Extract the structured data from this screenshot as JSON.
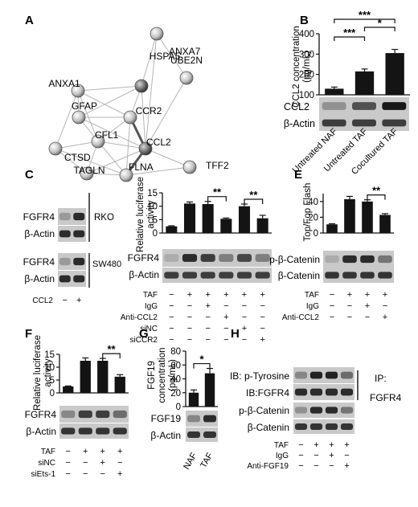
{
  "panels": {
    "A": {
      "label": "A",
      "nodes": [
        "ANXA1",
        "ANXA7",
        "UBE2N",
        "HSPA5",
        "GFAP",
        "CCR2",
        "CTSD",
        "CFL1",
        "CCL2",
        "TAGLN",
        "FLNA",
        "TFF2"
      ]
    },
    "B": {
      "label": "B",
      "bands": [
        "CCL2",
        "β-Actin"
      ],
      "xticks": [
        "Untreated NAF",
        "Untreated TAF",
        "Cocultured TAF"
      ],
      "sig": [
        "***",
        "***",
        "*"
      ]
    },
    "C": {
      "label": "C",
      "bands_rko": [
        "FGFR4",
        "β-Actin"
      ],
      "bands_sw": [
        "FGFR4",
        "β-Actin"
      ],
      "cell_lines": [
        "RKO",
        "SW480"
      ],
      "row_label": "CCL2",
      "signs": [
        "−",
        "+"
      ]
    },
    "D": {
      "label": "D",
      "bands": [
        "FGFR4",
        "β-Actin"
      ],
      "sig": [
        "**",
        "**"
      ],
      "rows": [
        {
          "label": "TAF",
          "signs": [
            "−",
            "+",
            "+",
            "+",
            "+",
            "+"
          ]
        },
        {
          "label": "IgG",
          "signs": [
            "−",
            "−",
            "+",
            "−",
            "−",
            "−"
          ]
        },
        {
          "label": "Anti-CCL2",
          "signs": [
            "−",
            "−",
            "−",
            "+",
            "−",
            "−"
          ]
        },
        {
          "label": "siNC",
          "signs": [
            "−",
            "−",
            "−",
            "−",
            "+",
            "−"
          ]
        },
        {
          "label": "siCCR2",
          "signs": [
            "−",
            "−",
            "−",
            "−",
            "−",
            "+"
          ]
        }
      ]
    },
    "E": {
      "label": "E",
      "bands": [
        "p-β-Catenin",
        "β-Catenin"
      ],
      "sig": [
        "**"
      ],
      "rows": [
        {
          "label": "TAF",
          "signs": [
            "−",
            "+",
            "+",
            "+"
          ]
        },
        {
          "label": "IgG",
          "signs": [
            "−",
            "−",
            "+",
            "−"
          ]
        },
        {
          "label": "Anti-CCL2",
          "signs": [
            "−",
            "−",
            "−",
            "+"
          ]
        }
      ]
    },
    "F": {
      "label": "F",
      "bands": [
        "FGFR4",
        "β-Actin"
      ],
      "sig": [
        "**"
      ],
      "rows": [
        {
          "label": "TAF",
          "signs": [
            "−",
            "+",
            "+",
            "+"
          ]
        },
        {
          "label": "siNC",
          "signs": [
            "−",
            "−",
            "+",
            "−"
          ]
        },
        {
          "label": "siEts-1",
          "signs": [
            "−",
            "−",
            "−",
            "+"
          ]
        }
      ]
    },
    "G": {
      "label": "G",
      "bands": [
        "FGF19",
        "β-Actin"
      ],
      "xticks": [
        "NAF",
        "TAF"
      ],
      "sig": [
        "*"
      ]
    },
    "H": {
      "label": "H",
      "bands": [
        "IB: p-Tyrosine",
        "IB:FGFR4",
        "p-β-Catenin",
        "β-Catenin"
      ],
      "ip_label": "IP:",
      "ip_target": "FGFR4",
      "rows": [
        {
          "label": "TAF",
          "signs": [
            "−",
            "+",
            "+",
            "+"
          ]
        },
        {
          "label": "IgG",
          "signs": [
            "−",
            "−",
            "+",
            "−"
          ]
        },
        {
          "label": "Anti-FGF19",
          "signs": [
            "−",
            "−",
            "−",
            "+"
          ]
        }
      ]
    }
  },
  "chart_data": [
    {
      "panel": "B",
      "type": "bar",
      "categories": [
        "Untreated NAF",
        "Untreated TAF",
        "Cocultured TAF"
      ],
      "values": [
        130,
        215,
        305
      ],
      "errors": [
        8,
        12,
        18
      ],
      "ylabel": "CCL2 concentration (pg/mL)",
      "ylim": [
        100,
        400
      ],
      "yticks": [
        100,
        200,
        300,
        400
      ],
      "grid": false
    },
    {
      "panel": "D",
      "type": "bar",
      "categories": [
        "1",
        "2",
        "3",
        "4",
        "5",
        "6"
      ],
      "values": [
        2.5,
        11,
        10.8,
        5.3,
        10,
        5.5
      ],
      "errors": [
        0.2,
        0.6,
        1.0,
        0.3,
        0.8,
        1.1
      ],
      "ylabel": "Relative luciferase activity",
      "ylim": [
        0,
        15
      ],
      "yticks": [
        0,
        5,
        10,
        15
      ],
      "grid": false
    },
    {
      "panel": "E",
      "type": "bar",
      "categories": [
        "1",
        "2",
        "3",
        "4"
      ],
      "values": [
        11,
        43,
        40,
        23
      ],
      "errors": [
        0.8,
        3.5,
        2.2,
        1.6
      ],
      "ylabel": "Top/Fop Flash",
      "ylim": [
        0,
        50
      ],
      "yticks": [
        0,
        20,
        40
      ],
      "grid": false
    },
    {
      "panel": "F",
      "type": "bar",
      "categories": [
        "1",
        "2",
        "3",
        "4"
      ],
      "values": [
        2.5,
        12.5,
        12.5,
        6.3
      ],
      "errors": [
        0.2,
        1.1,
        0.9,
        0.8
      ],
      "ylabel": "Relative luciferase activity",
      "ylim": [
        0,
        15
      ],
      "yticks": [
        0,
        5,
        10,
        15
      ],
      "grid": false
    },
    {
      "panel": "G",
      "type": "bar",
      "categories": [
        "NAF",
        "TAF"
      ],
      "values": [
        20,
        48
      ],
      "errors": [
        4,
        7
      ],
      "ylabel": "FGF19 concentration (pg/mL)",
      "ylim": [
        0,
        80
      ],
      "yticks": [
        0,
        20,
        40,
        60,
        80
      ],
      "grid": false
    }
  ]
}
